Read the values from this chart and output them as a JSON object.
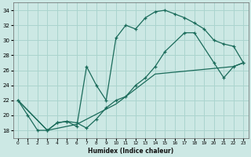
{
  "xlabel": "Humidex (Indice chaleur)",
  "bg_color": "#cce8e4",
  "grid_color": "#aad4ce",
  "line_color": "#1a6b5a",
  "xlim": [
    -0.5,
    23.5
  ],
  "ylim": [
    17.0,
    35.0
  ],
  "xticks": [
    0,
    1,
    2,
    3,
    4,
    5,
    6,
    7,
    8,
    9,
    10,
    11,
    12,
    13,
    14,
    15,
    16,
    17,
    18,
    19,
    20,
    21,
    22,
    23
  ],
  "yticks": [
    18,
    20,
    22,
    24,
    26,
    28,
    30,
    32,
    34
  ],
  "curve_main_x": [
    0,
    1,
    2,
    3,
    4,
    5,
    6,
    7,
    8,
    9,
    10,
    11,
    12,
    13,
    14,
    15,
    16,
    17,
    18,
    19,
    20,
    21,
    22,
    23
  ],
  "curve_main_y": [
    22,
    20,
    18,
    18,
    19,
    19.2,
    18.5,
    26.5,
    24,
    22,
    30.3,
    32,
    31.5,
    33,
    33.8,
    34,
    33.5,
    33,
    32.3,
    31.5,
    30,
    29.5,
    29.2,
    27
  ],
  "curve_diag1_x": [
    0,
    3,
    4,
    5,
    6,
    7,
    8,
    9,
    10,
    11,
    12,
    13,
    14,
    15,
    17,
    18,
    20,
    21,
    22,
    23
  ],
  "curve_diag1_y": [
    22,
    18,
    19,
    19.2,
    19,
    18.3,
    19.5,
    21,
    22,
    22.5,
    24,
    25,
    26.5,
    28.5,
    31,
    31,
    27,
    25,
    26.5,
    27
  ],
  "curve_diag2_x": [
    0,
    3,
    6,
    10,
    14,
    22,
    23
  ],
  "curve_diag2_y": [
    22,
    18,
    18.8,
    21.5,
    25.5,
    26.5,
    27
  ]
}
